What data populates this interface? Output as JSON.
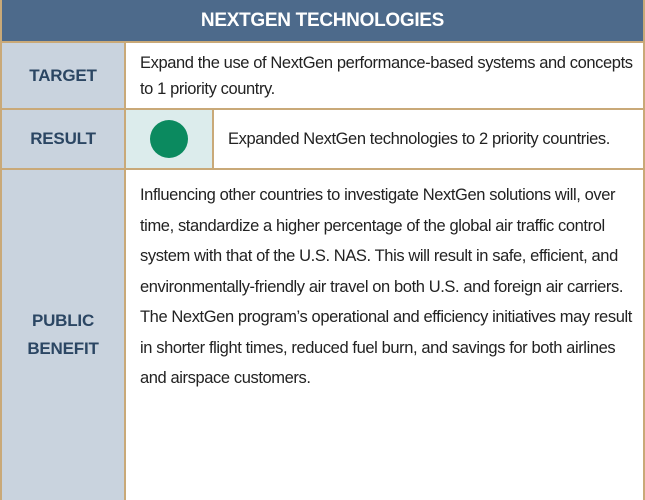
{
  "table": {
    "title": "NEXTGEN TECHNOLOGIES",
    "rows": [
      {
        "label": "TARGET",
        "text": "Expand the use of NextGen performance-based systems and concepts to 1 priority country."
      },
      {
        "label": "RESULT",
        "text": "Expanded NextGen technologies to 2 priority countries."
      },
      {
        "label": "PUBLIC BENEFIT",
        "text": "Influencing other countries to investigate NextGen solutions will, over time, standardize a higher percentage of the global air traffic control system with that of the U.S. NAS. This will result in safe, efficient, and environmentally-friendly air travel on both U.S. and foreign air carriers. The NextGen program’s operational and efficiency initiatives may result in shorter flight times, reduced fuel burn, and savings for both airlines and airspace customers."
      }
    ]
  }
}
